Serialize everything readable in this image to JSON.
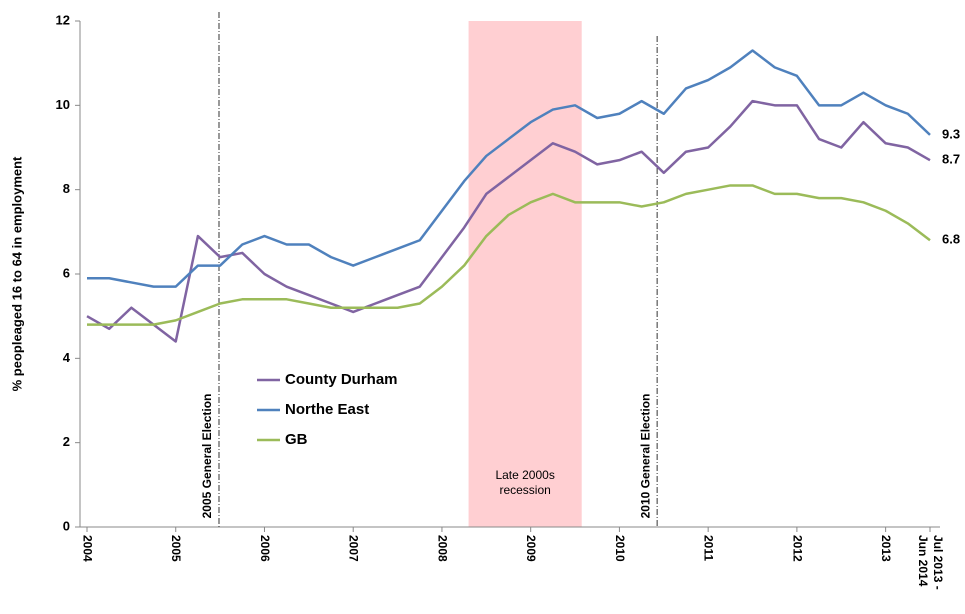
{
  "chart_data": {
    "type": "line",
    "y_label": "% peopleaged 16 to 64 in employment",
    "categories": [
      "2004",
      null,
      null,
      null,
      "2005",
      null,
      null,
      null,
      "2006",
      null,
      null,
      null,
      "2007",
      null,
      null,
      null,
      "2008",
      null,
      null,
      null,
      "2009",
      null,
      null,
      null,
      "2010",
      null,
      null,
      null,
      "2011",
      null,
      null,
      null,
      "2012",
      null,
      null,
      null,
      "2013",
      null,
      "Jul 2013 - Jun 2014"
    ],
    "series": [
      {
        "name": "County Durham",
        "color": "#8064a2",
        "values": [
          5.0,
          4.7,
          5.2,
          4.8,
          4.4,
          6.9,
          6.4,
          6.5,
          6.0,
          5.7,
          5.5,
          5.3,
          5.1,
          5.3,
          5.5,
          5.7,
          6.4,
          7.1,
          7.9,
          8.3,
          8.7,
          9.1,
          8.9,
          8.6,
          8.7,
          8.9,
          8.4,
          8.9,
          9.0,
          9.5,
          10.1,
          10.0,
          10.0,
          9.2,
          9.0,
          9.6,
          9.1,
          9.0,
          8.7
        ]
      },
      {
        "name": "Northe East",
        "color": "#4f81bd",
        "values": [
          5.9,
          5.9,
          5.8,
          5.7,
          5.7,
          6.2,
          6.2,
          6.7,
          6.9,
          6.7,
          6.7,
          6.4,
          6.2,
          6.4,
          6.6,
          6.8,
          7.5,
          8.2,
          8.8,
          9.2,
          9.6,
          9.9,
          10.0,
          9.7,
          9.8,
          10.1,
          9.8,
          10.4,
          10.6,
          10.9,
          11.3,
          10.9,
          10.7,
          10.0,
          10.0,
          10.3,
          10.0,
          9.8,
          9.3
        ]
      },
      {
        "name": "GB",
        "color": "#9bbb59",
        "values": [
          4.8,
          4.8,
          4.8,
          4.8,
          4.9,
          5.1,
          5.3,
          5.4,
          5.4,
          5.4,
          5.3,
          5.2,
          5.2,
          5.2,
          5.2,
          5.3,
          5.7,
          6.2,
          6.9,
          7.4,
          7.7,
          7.9,
          7.7,
          7.7,
          7.7,
          7.6,
          7.7,
          7.9,
          8.0,
          8.1,
          8.1,
          7.9,
          7.9,
          7.8,
          7.8,
          7.7,
          7.5,
          7.2,
          6.8
        ]
      }
    ],
    "end_labels": true,
    "ylim": [
      0,
      12
    ],
    "yticks": [
      0,
      2,
      4,
      6,
      8,
      10,
      12
    ],
    "grid": false,
    "shaded_regions": [
      {
        "from": 17.2,
        "to": 22.3,
        "color": "#ffcfd2",
        "label_lines": [
          "Late 2000s",
          "recession"
        ]
      }
    ],
    "vlines": [
      {
        "x": 5.95,
        "label": "2005 General Election"
      },
      {
        "x": 25.7,
        "label": "2010 General Election"
      }
    ]
  }
}
